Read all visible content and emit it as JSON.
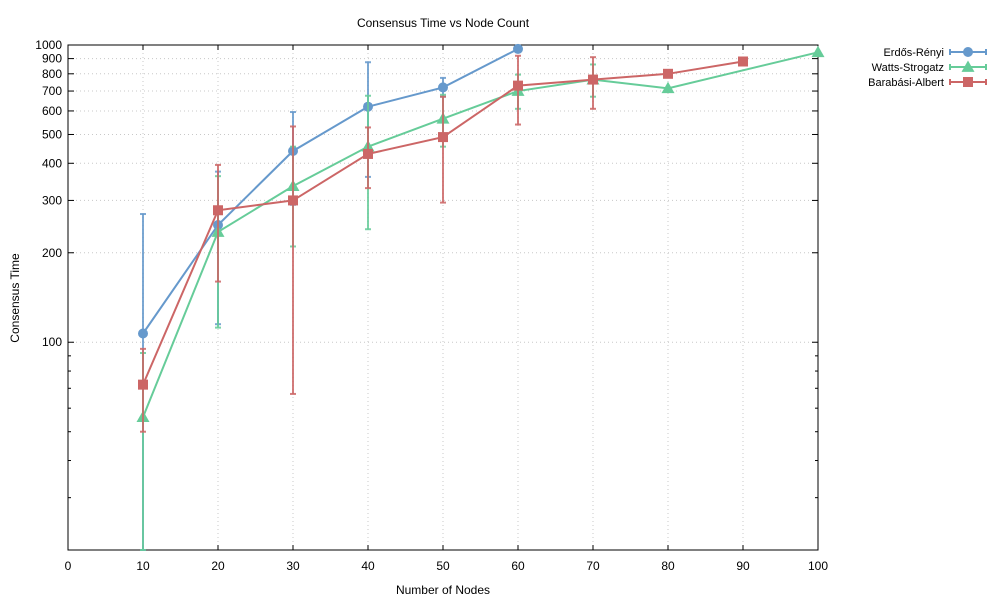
{
  "chart_data": {
    "type": "line",
    "title": "Consensus Time vs Node Count",
    "xlabel": "Number of Nodes",
    "ylabel": "Consensus Time",
    "xlim": [
      0,
      100
    ],
    "ylim": [
      20,
      1000
    ],
    "yscale": "log",
    "grid": true,
    "legend_position": "outside-right-top",
    "x_ticks": [
      "0",
      "10",
      "20",
      "30",
      "40",
      "50",
      "60",
      "70",
      "80",
      "90",
      "100"
    ],
    "y_ticks": [
      "100",
      "200",
      "300",
      "400",
      "500",
      "600",
      "700",
      "800",
      "900",
      "1000"
    ],
    "series": [
      {
        "name": "Erdős-Rényi",
        "color": "#6699cc",
        "marker": "circle",
        "points": [
          {
            "x": 10,
            "y": 107,
            "lo": 20,
            "hi": 270
          },
          {
            "x": 20,
            "y": 248,
            "lo": 115,
            "hi": 375
          },
          {
            "x": 30,
            "y": 440,
            "lo": 290,
            "hi": 595
          },
          {
            "x": 40,
            "y": 620,
            "lo": 360,
            "hi": 875
          },
          {
            "x": 50,
            "y": 720,
            "lo": 670,
            "hi": 775
          },
          {
            "x": 60,
            "y": 970,
            "lo": 970,
            "hi": 970
          }
        ]
      },
      {
        "name": "Watts-Strogatz",
        "color": "#66cc99",
        "marker": "triangle",
        "points": [
          {
            "x": 10,
            "y": 56,
            "lo": 20,
            "hi": 92
          },
          {
            "x": 20,
            "y": 235,
            "lo": 112,
            "hi": 362
          },
          {
            "x": 30,
            "y": 335,
            "lo": 210,
            "hi": 455
          },
          {
            "x": 40,
            "y": 455,
            "lo": 240,
            "hi": 675
          },
          {
            "x": 50,
            "y": 565,
            "lo": 455,
            "hi": 680
          },
          {
            "x": 60,
            "y": 700,
            "lo": 610,
            "hi": 795
          },
          {
            "x": 70,
            "y": 765,
            "lo": 670,
            "hi": 860
          },
          {
            "x": 80,
            "y": 715,
            "lo": 715,
            "hi": 715
          },
          {
            "x": 100,
            "y": 945,
            "lo": 945,
            "hi": 945
          }
        ]
      },
      {
        "name": "Barabási-Albert",
        "color": "#cc6666",
        "marker": "square",
        "points": [
          {
            "x": 10,
            "y": 72,
            "lo": 50,
            "hi": 95
          },
          {
            "x": 20,
            "y": 278,
            "lo": 160,
            "hi": 395
          },
          {
            "x": 30,
            "y": 300,
            "lo": 67,
            "hi": 532
          },
          {
            "x": 40,
            "y": 430,
            "lo": 330,
            "hi": 528
          },
          {
            "x": 50,
            "y": 490,
            "lo": 295,
            "hi": 670
          },
          {
            "x": 60,
            "y": 730,
            "lo": 540,
            "hi": 920
          },
          {
            "x": 70,
            "y": 765,
            "lo": 610,
            "hi": 910
          },
          {
            "x": 80,
            "y": 800,
            "lo": 800,
            "hi": 800
          },
          {
            "x": 90,
            "y": 880,
            "lo": 880,
            "hi": 880
          }
        ]
      }
    ]
  }
}
